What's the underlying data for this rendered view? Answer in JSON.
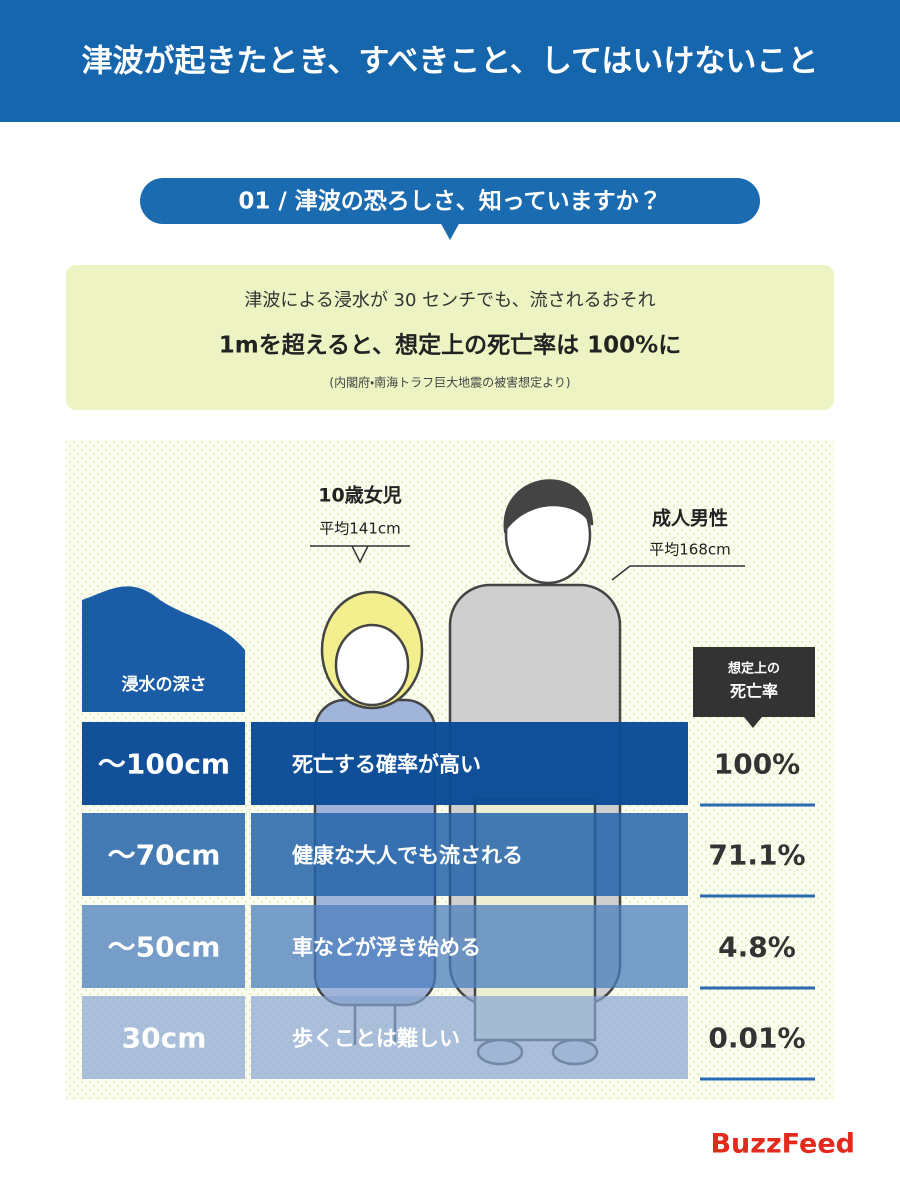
{
  "header": {
    "title": "津波が起きたとき、すべきこと、してはいけないこと"
  },
  "section": {
    "label": "01 / 津波の恐ろしさ、知っていますか？"
  },
  "notice": {
    "lines": [
      "津波による浸水が 30 センチでも、流されるおそれ",
      "1mを超えると、想定上の死亡率は 100%に",
      "(内閣府・南海トラフ巨大地震の被害想定より)"
    ]
  },
  "figures": [
    {
      "label": "10歳女児",
      "height": "平均141cm"
    },
    {
      "label": "成人男性",
      "height": "平均168cm"
    }
  ],
  "table": {
    "depth_header": "浸水の深さ",
    "rate_header": [
      "想定上の",
      "死亡率"
    ],
    "rows": [
      [
        "〜100cm",
        "死亡する確率が高い",
        "100%"
      ],
      [
        "〜70cm",
        "健康な大人でも流される",
        "71.1%"
      ],
      [
        "〜50cm",
        "車などが浮き始める",
        "4.8%"
      ],
      [
        "30cm",
        "歩くことは難しい",
        "0.01%"
      ]
    ]
  },
  "footer": {
    "brand": "BuzzFeed"
  }
}
